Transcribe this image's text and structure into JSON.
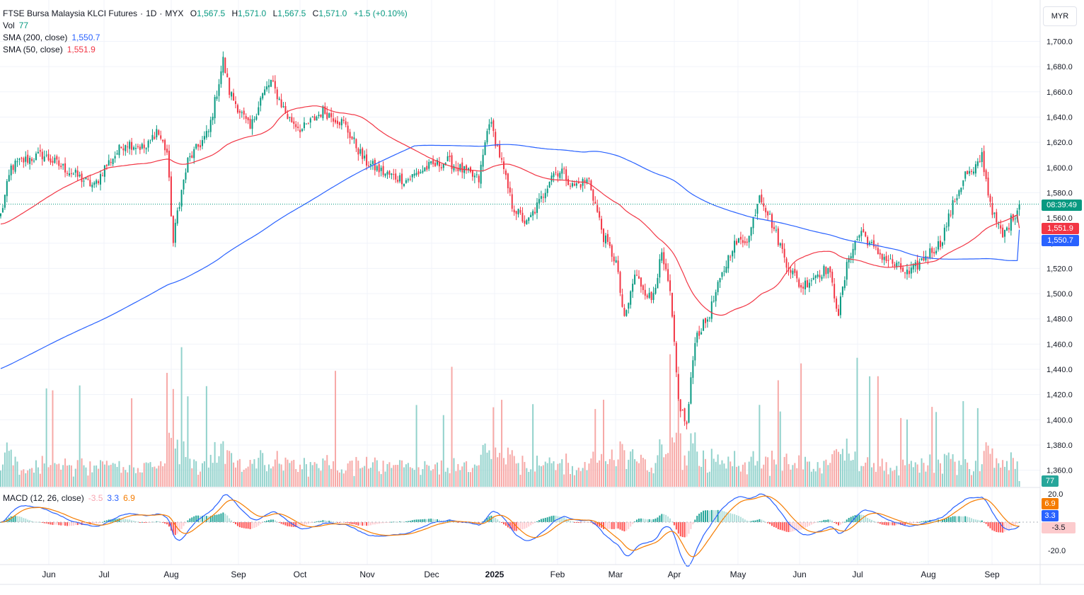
{
  "legend": {
    "symbol": "FTSE Bursa Malaysia KLCI Futures",
    "interval": "1D",
    "exchange": "MYX",
    "open_label": "O",
    "open": "1,567.5",
    "high_label": "H",
    "high": "1,571.0",
    "low_label": "L",
    "low": "1,567.5",
    "close_label": "C",
    "close": "1,571.0",
    "change": "+1.5 (+0.10%)",
    "vol_label": "Vol",
    "vol": "77",
    "sma200_label": "SMA (200, close)",
    "sma200": "1,550.7",
    "sma50_label": "SMA (50, close)",
    "sma50": "1,551.9",
    "macd_label": "MACD (12, 26, close)",
    "macd_hist": "-3.5",
    "macd_line": "3.3",
    "macd_signal": "6.9"
  },
  "currency_button": "MYR",
  "price_tags": {
    "countdown": "08:39:49",
    "sma50": "1,551.9",
    "sma200": "1,550.7",
    "volume": "77",
    "macd_signal": "6.9",
    "macd_line": "3.3",
    "macd_hist": "-3.5"
  },
  "colors": {
    "up": "#089981",
    "down": "#f23645",
    "sma200": "#2962ff",
    "sma50": "#f23645",
    "signal": "#f57c00",
    "vol_up": "#92d2cc",
    "vol_down": "#f7a9a7"
  },
  "chart_data": {
    "type": "candlestick",
    "price_axis": {
      "ylim": [
        1342,
        1715
      ],
      "ticks": [
        "1,700.0",
        "1,680.0",
        "1,660.0",
        "1,640.0",
        "1,620.0",
        "1,600.0",
        "1,580.0",
        "1,560.0",
        "1,540.0",
        "1,520.0",
        "1,500.0",
        "1,480.0",
        "1,460.0",
        "1,440.0",
        "1,420.0",
        "1,400.0",
        "1,380.0",
        "1,360.0"
      ]
    },
    "macd_axis": {
      "ticks": [
        "20.0",
        "-20.0"
      ]
    },
    "time_axis": [
      {
        "label": "Jun",
        "bold": false
      },
      {
        "label": "Jul",
        "bold": false
      },
      {
        "label": "Aug",
        "bold": false
      },
      {
        "label": "Sep",
        "bold": false
      },
      {
        "label": "Oct",
        "bold": false
      },
      {
        "label": "Nov",
        "bold": false
      },
      {
        "label": "Dec",
        "bold": false
      },
      {
        "label": "2025",
        "bold": true
      },
      {
        "label": "Feb",
        "bold": false
      },
      {
        "label": "Mar",
        "bold": false
      },
      {
        "label": "Apr",
        "bold": false
      },
      {
        "label": "May",
        "bold": false
      },
      {
        "label": "Jun",
        "bold": false
      },
      {
        "label": "Jul",
        "bold": false
      },
      {
        "label": "Aug",
        "bold": false
      },
      {
        "label": "Sep",
        "bold": false
      }
    ],
    "close_anchors": [
      [
        0,
        1562
      ],
      [
        5,
        1600
      ],
      [
        10,
        1605
      ],
      [
        20,
        1610
      ],
      [
        30,
        1600
      ],
      [
        40,
        1590
      ],
      [
        45,
        1585
      ],
      [
        50,
        1600
      ],
      [
        55,
        1610
      ],
      [
        60,
        1620
      ],
      [
        70,
        1615
      ],
      [
        75,
        1630
      ],
      [
        80,
        1612
      ],
      [
        83,
        1540
      ],
      [
        85,
        1565
      ],
      [
        90,
        1605
      ],
      [
        100,
        1628
      ],
      [
        104,
        1660
      ],
      [
        107,
        1685
      ],
      [
        110,
        1660
      ],
      [
        120,
        1630
      ],
      [
        125,
        1655
      ],
      [
        130,
        1668
      ],
      [
        138,
        1640
      ],
      [
        145,
        1630
      ],
      [
        155,
        1645
      ],
      [
        165,
        1635
      ],
      [
        175,
        1605
      ],
      [
        185,
        1595
      ],
      [
        195,
        1590
      ],
      [
        205,
        1600
      ],
      [
        215,
        1605
      ],
      [
        225,
        1595
      ],
      [
        230,
        1590
      ],
      [
        235,
        1638
      ],
      [
        240,
        1610
      ],
      [
        246,
        1570
      ],
      [
        253,
        1555
      ],
      [
        260,
        1575
      ],
      [
        265,
        1595
      ],
      [
        270,
        1598
      ],
      [
        275,
        1585
      ],
      [
        283,
        1590
      ],
      [
        290,
        1545
      ],
      [
        296,
        1525
      ],
      [
        300,
        1478
      ],
      [
        305,
        1515
      ],
      [
        313,
        1495
      ],
      [
        318,
        1530
      ],
      [
        322,
        1500
      ],
      [
        326,
        1415
      ],
      [
        330,
        1395
      ],
      [
        334,
        1465
      ],
      [
        340,
        1480
      ],
      [
        345,
        1505
      ],
      [
        352,
        1538
      ],
      [
        360,
        1545
      ],
      [
        365,
        1580
      ],
      [
        370,
        1560
      ],
      [
        378,
        1525
      ],
      [
        385,
        1505
      ],
      [
        392,
        1515
      ],
      [
        398,
        1520
      ],
      [
        403,
        1485
      ],
      [
        408,
        1530
      ],
      [
        414,
        1550
      ],
      [
        420,
        1535
      ],
      [
        428,
        1525
      ],
      [
        437,
        1515
      ],
      [
        445,
        1530
      ],
      [
        452,
        1540
      ],
      [
        458,
        1570
      ],
      [
        464,
        1595
      ],
      [
        468,
        1595
      ],
      [
        472,
        1610
      ],
      [
        475,
        1580
      ],
      [
        478,
        1560
      ],
      [
        482,
        1545
      ],
      [
        485,
        1555
      ],
      [
        490,
        1570
      ]
    ],
    "current_price": 1571.0,
    "sma200_last": 1550.7,
    "sma50_last": 1551.9,
    "volume_last": 77,
    "macd_last": {
      "hist": -3.5,
      "macd": 3.3,
      "signal": 6.9
    }
  }
}
